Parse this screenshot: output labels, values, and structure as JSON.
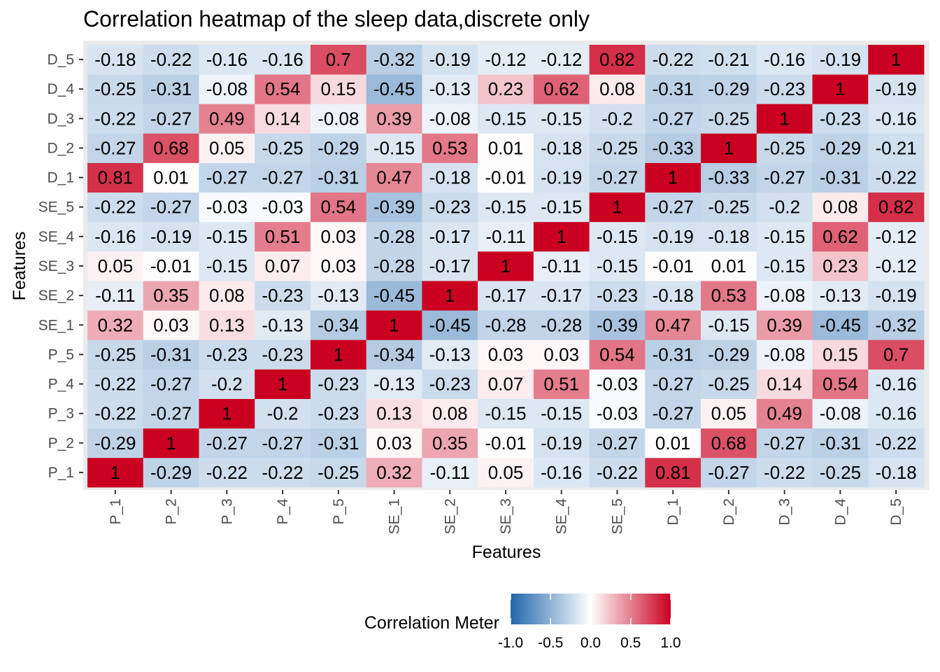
{
  "chart_data": {
    "type": "heatmap",
    "title": "Correlation heatmap of the sleep data,discrete only",
    "xlabel": "Features",
    "ylabel": "Features",
    "x_categories": [
      "P_1",
      "P_2",
      "P_3",
      "P_4",
      "P_5",
      "SE_1",
      "SE_2",
      "SE_3",
      "SE_4",
      "SE_5",
      "D_1",
      "D_2",
      "D_3",
      "D_4",
      "D_5"
    ],
    "y_categories": [
      "P_1",
      "P_2",
      "P_3",
      "P_4",
      "P_5",
      "SE_1",
      "SE_2",
      "SE_3",
      "SE_4",
      "SE_5",
      "D_1",
      "D_2",
      "D_3",
      "D_4",
      "D_5"
    ],
    "y_order": "P_1 at bottom, D_5 at top",
    "values": [
      [
        1,
        -0.29,
        -0.22,
        -0.22,
        -0.25,
        0.32,
        -0.11,
        0.05,
        -0.16,
        -0.22,
        0.81,
        -0.27,
        -0.22,
        -0.25,
        -0.18
      ],
      [
        -0.29,
        1,
        -0.27,
        -0.27,
        -0.31,
        0.03,
        0.35,
        -0.01,
        -0.19,
        -0.27,
        0.01,
        0.68,
        -0.27,
        -0.31,
        -0.22
      ],
      [
        -0.22,
        -0.27,
        1,
        -0.2,
        -0.23,
        0.13,
        0.08,
        -0.15,
        -0.15,
        -0.03,
        -0.27,
        0.05,
        0.49,
        -0.08,
        -0.16
      ],
      [
        -0.22,
        -0.27,
        -0.2,
        1,
        -0.23,
        -0.13,
        -0.23,
        0.07,
        0.51,
        -0.03,
        -0.27,
        -0.25,
        0.14,
        0.54,
        -0.16
      ],
      [
        -0.25,
        -0.31,
        -0.23,
        -0.23,
        1,
        -0.34,
        -0.13,
        0.03,
        0.03,
        0.54,
        -0.31,
        -0.29,
        -0.08,
        0.15,
        0.7
      ],
      [
        0.32,
        0.03,
        0.13,
        -0.13,
        -0.34,
        1,
        -0.45,
        -0.28,
        -0.28,
        -0.39,
        0.47,
        -0.15,
        0.39,
        -0.45,
        -0.32
      ],
      [
        -0.11,
        0.35,
        0.08,
        -0.23,
        -0.13,
        -0.45,
        1,
        -0.17,
        -0.17,
        -0.23,
        -0.18,
        0.53,
        -0.08,
        -0.13,
        -0.19
      ],
      [
        0.05,
        -0.01,
        -0.15,
        0.07,
        0.03,
        -0.28,
        -0.17,
        1,
        -0.11,
        -0.15,
        -0.01,
        0.01,
        -0.15,
        0.23,
        -0.12
      ],
      [
        -0.16,
        -0.19,
        -0.15,
        0.51,
        0.03,
        -0.28,
        -0.17,
        -0.11,
        1,
        -0.15,
        -0.19,
        -0.18,
        -0.15,
        0.62,
        -0.12
      ],
      [
        -0.22,
        -0.27,
        -0.03,
        -0.03,
        0.54,
        -0.39,
        -0.23,
        -0.15,
        -0.15,
        1,
        -0.27,
        -0.25,
        -0.2,
        0.08,
        0.82
      ],
      [
        0.81,
        0.01,
        -0.27,
        -0.27,
        -0.31,
        0.47,
        -0.18,
        -0.01,
        -0.19,
        -0.27,
        1,
        -0.33,
        -0.27,
        -0.31,
        -0.22
      ],
      [
        -0.27,
        0.68,
        0.05,
        -0.25,
        -0.29,
        -0.15,
        0.53,
        0.01,
        -0.18,
        -0.25,
        -0.33,
        1,
        -0.25,
        -0.29,
        -0.21
      ],
      [
        -0.22,
        -0.27,
        0.49,
        0.14,
        -0.08,
        0.39,
        -0.08,
        -0.15,
        -0.15,
        -0.2,
        -0.27,
        -0.25,
        1,
        -0.23,
        -0.16
      ],
      [
        -0.25,
        -0.31,
        -0.08,
        0.54,
        0.15,
        -0.45,
        -0.13,
        0.23,
        0.62,
        0.08,
        -0.31,
        -0.29,
        -0.23,
        1,
        -0.19
      ],
      [
        -0.18,
        -0.22,
        -0.16,
        -0.16,
        0.7,
        -0.32,
        -0.19,
        -0.12,
        -0.12,
        0.82,
        -0.22,
        -0.21,
        -0.16,
        -0.19,
        1
      ]
    ],
    "legend": {
      "title": "Correlation Meter",
      "placement": "bottom",
      "limits": [
        -1,
        1
      ],
      "ticks": [
        -1.0,
        -0.5,
        0.0,
        0.5,
        1.0
      ],
      "tick_labels": [
        "-1.0",
        "-0.5",
        "0.0",
        "0.5",
        "1.0"
      ],
      "colors": {
        "low": "#2166ac",
        "mid": "#ffffff",
        "high": "#ca0020"
      }
    },
    "panel_background": "#ebebeb",
    "grid": true
  }
}
